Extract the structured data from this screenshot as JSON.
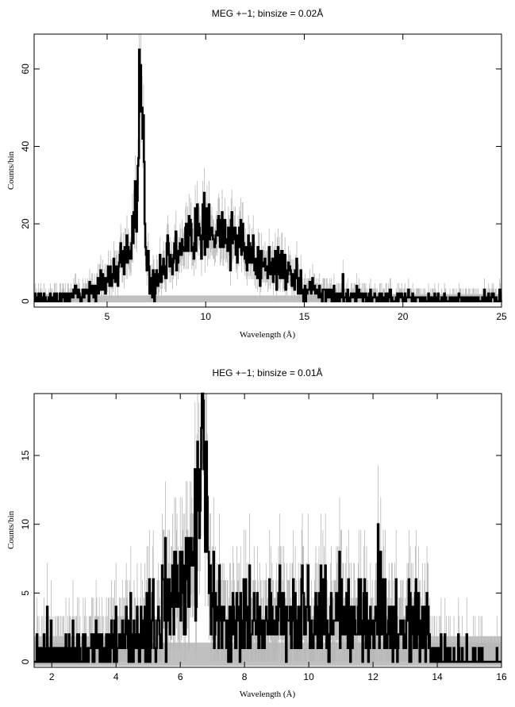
{
  "chart_data": [
    {
      "type": "line",
      "title": "MEG +−1; binsize = 0.02Å",
      "xlabel": "Wavelength (Å)",
      "ylabel": "Counts/bin",
      "xlim": [
        1.3,
        25
      ],
      "ylim": [
        -1.5,
        69
      ],
      "xticks": [
        5,
        10,
        15,
        20,
        25
      ],
      "yticks": [
        0,
        20,
        40,
        60
      ],
      "background_band": [
        -0.3,
        1.5
      ],
      "profile": [
        [
          1.3,
          0.6
        ],
        [
          2.5,
          0.8
        ],
        [
          3.0,
          1.2
        ],
        [
          3.5,
          1.5
        ],
        [
          4.0,
          2.5
        ],
        [
          4.5,
          3.5
        ],
        [
          5.0,
          5.5
        ],
        [
          5.5,
          9
        ],
        [
          6.0,
          13
        ],
        [
          6.3,
          18
        ],
        [
          6.5,
          24
        ],
        [
          6.6,
          40
        ],
        [
          6.65,
          66
        ],
        [
          6.7,
          68
        ],
        [
          6.75,
          60
        ],
        [
          6.8,
          55
        ],
        [
          6.9,
          30
        ],
        [
          7.0,
          12
        ],
        [
          7.2,
          5
        ],
        [
          7.4,
          4
        ],
        [
          7.7,
          9
        ],
        [
          8.2,
          11
        ],
        [
          8.7,
          13
        ],
        [
          9.0,
          17
        ],
        [
          9.5,
          18
        ],
        [
          10.0,
          19
        ],
        [
          10.5,
          18
        ],
        [
          11.0,
          17
        ],
        [
          11.5,
          15
        ],
        [
          12.0,
          13
        ],
        [
          12.5,
          10
        ],
        [
          13.0,
          9
        ],
        [
          13.5,
          8.5
        ],
        [
          14.0,
          8
        ],
        [
          14.5,
          6
        ],
        [
          15.0,
          4
        ],
        [
          15.5,
          2.5
        ],
        [
          16.0,
          1.5
        ],
        [
          17.0,
          1.2
        ],
        [
          18.0,
          1
        ],
        [
          20.0,
          0.8
        ],
        [
          25.0,
          0.5
        ]
      ]
    },
    {
      "type": "line",
      "title": "HEG +−1; binsize = 0.01Å",
      "xlabel": "Wavelength (Å)",
      "ylabel": "Counts/bin",
      "xlim": [
        1.45,
        16
      ],
      "ylim": [
        -0.4,
        19.5
      ],
      "xticks": [
        2,
        4,
        6,
        8,
        10,
        12,
        14,
        16
      ],
      "yticks": [
        0,
        5,
        10,
        15
      ],
      "background_band": [
        -0.3,
        1.4
      ],
      "profile": [
        [
          1.45,
          0.5
        ],
        [
          2.0,
          0.7
        ],
        [
          3.0,
          0.9
        ],
        [
          4.0,
          1.2
        ],
        [
          4.5,
          1.6
        ],
        [
          5.0,
          2.2
        ],
        [
          5.5,
          3.5
        ],
        [
          6.0,
          4.5
        ],
        [
          6.3,
          5.5
        ],
        [
          6.5,
          9
        ],
        [
          6.6,
          14
        ],
        [
          6.7,
          18
        ],
        [
          6.75,
          17
        ],
        [
          6.8,
          13
        ],
        [
          6.9,
          8
        ],
        [
          7.0,
          4
        ],
        [
          7.2,
          3
        ],
        [
          7.5,
          3
        ],
        [
          8.0,
          2.8
        ],
        [
          9.0,
          3
        ],
        [
          10.0,
          3
        ],
        [
          10.5,
          3.2
        ],
        [
          11.0,
          3
        ],
        [
          12.0,
          2.8
        ],
        [
          13.0,
          2.6
        ],
        [
          13.7,
          2.4
        ],
        [
          13.8,
          0.5
        ],
        [
          14.5,
          0.3
        ],
        [
          15.2,
          0.2
        ],
        [
          16.0,
          0
        ]
      ]
    }
  ]
}
